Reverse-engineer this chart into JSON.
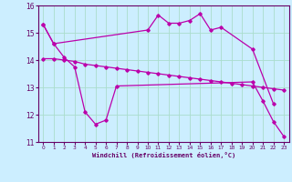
{
  "xlabel": "Windchill (Refroidissement éolien,°C)",
  "ylabel": "",
  "bg_color": "#cceeff",
  "grid_color": "#aaddcc",
  "line_color": "#bb00aa",
  "xlim": [
    -0.5,
    23.5
  ],
  "ylim": [
    11,
    16
  ],
  "xticks": [
    0,
    1,
    2,
    3,
    4,
    5,
    6,
    7,
    8,
    9,
    10,
    11,
    12,
    13,
    14,
    15,
    16,
    17,
    18,
    19,
    20,
    21,
    22,
    23
  ],
  "yticks": [
    11,
    12,
    13,
    14,
    15,
    16
  ],
  "series": [
    [
      15.3,
      14.6,
      null,
      null,
      null,
      null,
      null,
      null,
      null,
      null,
      15.1,
      15.65,
      15.35,
      15.35,
      15.45,
      15.7,
      15.1,
      15.2,
      null,
      null,
      14.4,
      null,
      12.4,
      null
    ],
    [
      14.05,
      14.05,
      14.0,
      13.95,
      13.85,
      13.8,
      13.75,
      13.7,
      13.65,
      13.6,
      13.55,
      13.5,
      13.45,
      13.4,
      13.35,
      13.3,
      13.25,
      13.2,
      13.15,
      13.1,
      13.05,
      13.0,
      12.95,
      12.9
    ],
    [
      15.3,
      14.6,
      14.1,
      13.75,
      12.1,
      11.65,
      11.8,
      13.05,
      null,
      null,
      null,
      null,
      null,
      null,
      null,
      null,
      null,
      null,
      null,
      null,
      13.2,
      12.5,
      11.75,
      11.2
    ]
  ]
}
